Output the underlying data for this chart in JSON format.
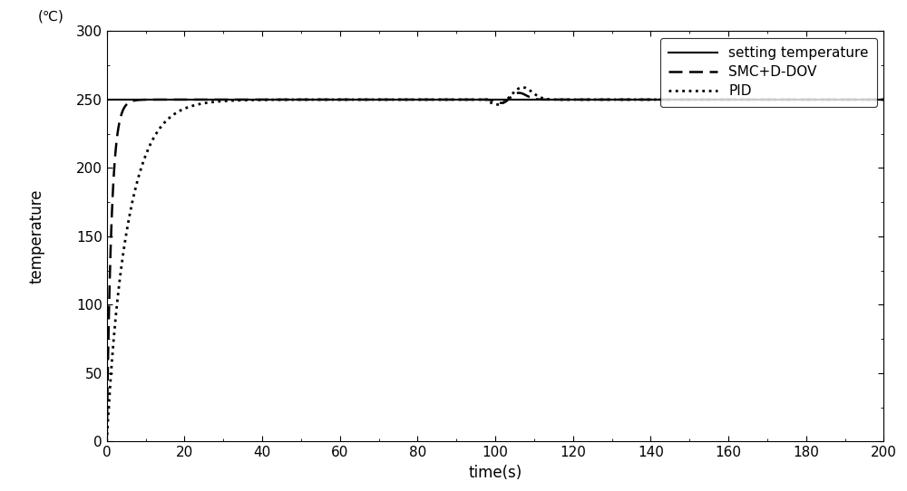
{
  "title": "",
  "xlabel": "time(s)",
  "ylabel": "temperature",
  "ylabel2": "(℃)",
  "xlim": [
    0,
    200
  ],
  "ylim": [
    0,
    300
  ],
  "xticks": [
    0,
    20,
    40,
    60,
    80,
    100,
    120,
    140,
    160,
    180,
    200
  ],
  "yticks": [
    0,
    50,
    100,
    150,
    200,
    250,
    300
  ],
  "setpoint": 250,
  "color": "#000000",
  "legend_labels": [
    "setting temperature",
    "SMC+D-DOV",
    "PID"
  ],
  "line_styles": [
    "-",
    "--",
    ":"
  ],
  "linewidths": [
    1.5,
    1.8,
    2.0
  ],
  "figsize": [
    10.0,
    5.42
  ],
  "dpi": 100
}
